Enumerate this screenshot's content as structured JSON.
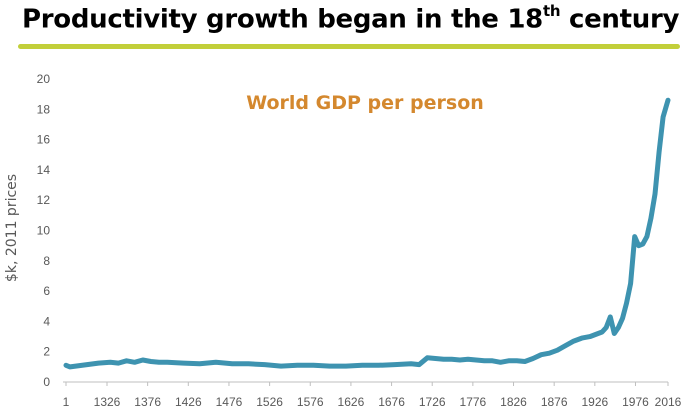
{
  "slide": {
    "title_main": "Productivity growth began in the 18",
    "title_sup": "th",
    "title_end": " century",
    "rule_color": "#c2cf3a"
  },
  "chart_data": {
    "type": "line",
    "title": "World GDP per person",
    "title_color": "#d4882e",
    "xlabel": "",
    "ylabel": "$k, 2011 prices",
    "ylim": [
      0,
      20
    ],
    "y_ticks": [
      "0",
      "2",
      "4",
      "6",
      "8",
      "10",
      "12",
      "14",
      "16",
      "18",
      "20"
    ],
    "x_ticks": [
      "1",
      "1326",
      "1376",
      "1426",
      "1476",
      "1526",
      "1576",
      "1626",
      "1676",
      "1726",
      "1776",
      "1826",
      "1876",
      "1926",
      "1976",
      "2016"
    ],
    "grid": false,
    "line_color": "#3e93b0",
    "series": [
      {
        "x": [
          1,
          1300,
          1320,
          1330,
          1340,
          1350,
          1360,
          1370,
          1380,
          1390,
          1400,
          1420,
          1440,
          1460,
          1480,
          1500,
          1520,
          1540,
          1560,
          1580,
          1600,
          1620,
          1640,
          1660,
          1680,
          1700,
          1710,
          1720,
          1730,
          1740,
          1750,
          1760,
          1770,
          1780,
          1790,
          1800,
          1810,
          1820,
          1830,
          1840,
          1850,
          1860,
          1870,
          1880,
          1890,
          1900,
          1910,
          1920,
          1930,
          1935,
          1940,
          1945,
          1950,
          1955,
          1960,
          1965,
          1970,
          1975,
          1980,
          1985,
          1990,
          1995,
          2000,
          2005,
          2010,
          2016
        ],
        "y": [
          1.1,
          1.0,
          1.25,
          1.3,
          1.25,
          1.4,
          1.3,
          1.45,
          1.35,
          1.3,
          1.3,
          1.25,
          1.2,
          1.3,
          1.2,
          1.2,
          1.15,
          1.05,
          1.1,
          1.1,
          1.05,
          1.05,
          1.1,
          1.1,
          1.15,
          1.2,
          1.15,
          1.6,
          1.55,
          1.5,
          1.5,
          1.45,
          1.5,
          1.45,
          1.4,
          1.4,
          1.3,
          1.4,
          1.4,
          1.35,
          1.55,
          1.8,
          1.9,
          2.1,
          2.4,
          2.7,
          2.9,
          3.0,
          3.2,
          3.3,
          3.6,
          4.3,
          3.2,
          3.6,
          4.2,
          5.2,
          6.5,
          9.6,
          9.0,
          9.1,
          9.6,
          10.8,
          12.4,
          15.2,
          17.5,
          18.6
        ]
      }
    ]
  }
}
